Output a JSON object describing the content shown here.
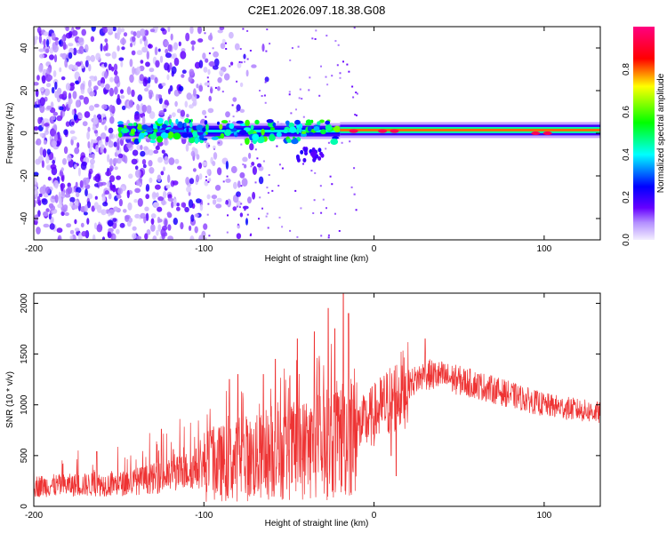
{
  "title": "C2E1.2026.097.18.38.G08",
  "chart_data": [
    {
      "type": "heatmap",
      "name": "spectrogram",
      "xlabel": "Height of straight line (km)",
      "ylabel": "Frequency (Hz)",
      "xlim": [
        -200,
        133
      ],
      "ylim": [
        -50,
        50
      ],
      "xticks": [
        -200,
        -100,
        0,
        100
      ],
      "yticks": [
        -40,
        -20,
        0,
        20,
        40
      ],
      "colorbar": {
        "label": "Normalized spectral amplitude",
        "range": [
          0,
          1
        ],
        "ticks": [
          0.0,
          0.2,
          0.4,
          0.6,
          0.8
        ],
        "tick_labels": [
          "0.0",
          "0.2",
          "0.4",
          "0.6",
          "0.8"
        ],
        "colormap": [
          "#f0f0ff",
          "#6600ff",
          "#0000ff",
          "#00ffff",
          "#00ff00",
          "#ffff00",
          "#ff0000",
          "#ff0080"
        ]
      },
      "carrier": {
        "description": "signal ridge near 0 Hz",
        "segments": [
          {
            "x_start": -150,
            "x_end": -100,
            "freq_center": 1,
            "amplitude": 0.35
          },
          {
            "x_start": -100,
            "x_end": -20,
            "freq_center": 1,
            "amplitude": 0.45
          },
          {
            "x_start": -20,
            "x_end": 133,
            "freq_center": 1.5,
            "amplitude": 0.8
          }
        ],
        "peaks": [
          {
            "x": -12,
            "freq": 1,
            "amplitude": 0.95
          },
          {
            "x": 5,
            "freq": 1,
            "amplitude": 0.95
          },
          {
            "x": 12,
            "freq": 1,
            "amplitude": 0.95
          },
          {
            "x": 95,
            "freq": 0,
            "amplitude": 0.95
          },
          {
            "x": 102,
            "freq": 0,
            "amplitude": 0.95
          }
        ]
      },
      "noise_region": {
        "x_start": -200,
        "x_end": -100,
        "amplitude": 0.2
      }
    },
    {
      "type": "line",
      "name": "snr",
      "xlabel": "Height of straight line (km)",
      "ylabel": "SNR (10 * v/v)",
      "xlim": [
        -200,
        133
      ],
      "ylim": [
        0,
        2100
      ],
      "xticks": [
        -200,
        -100,
        0,
        100
      ],
      "yticks": [
        0,
        500,
        1000,
        1500,
        2000
      ],
      "color": "#ee3333",
      "baseline": [
        {
          "x": -200,
          "y": 200
        },
        {
          "x": -150,
          "y": 220
        },
        {
          "x": -120,
          "y": 300
        },
        {
          "x": -100,
          "y": 400
        },
        {
          "x": -60,
          "y": 500
        },
        {
          "x": -30,
          "y": 600
        },
        {
          "x": -15,
          "y": 700
        },
        {
          "x": 0,
          "y": 900
        },
        {
          "x": 10,
          "y": 1050
        },
        {
          "x": 20,
          "y": 1200
        },
        {
          "x": 30,
          "y": 1300
        },
        {
          "x": 40,
          "y": 1280
        },
        {
          "x": 60,
          "y": 1200
        },
        {
          "x": 80,
          "y": 1100
        },
        {
          "x": 100,
          "y": 1000
        },
        {
          "x": 120,
          "y": 950
        },
        {
          "x": 133,
          "y": 920
        }
      ],
      "spikes": [
        {
          "x": -163,
          "y": 540
        },
        {
          "x": -125,
          "y": 760
        },
        {
          "x": -118,
          "y": 560
        },
        {
          "x": -95,
          "y": 750
        },
        {
          "x": -85,
          "y": 1250
        },
        {
          "x": -80,
          "y": 1300
        },
        {
          "x": -65,
          "y": 1300
        },
        {
          "x": -58,
          "y": 1450
        },
        {
          "x": -45,
          "y": 1650
        },
        {
          "x": -35,
          "y": 1720
        },
        {
          "x": -27,
          "y": 1950
        },
        {
          "x": -23,
          "y": 1750
        },
        {
          "x": -18,
          "y": 2100
        },
        {
          "x": -15,
          "y": 1900
        },
        {
          "x": 10,
          "y": 500
        },
        {
          "x": 13,
          "y": 300
        },
        {
          "x": 30,
          "y": 1650
        }
      ]
    }
  ]
}
